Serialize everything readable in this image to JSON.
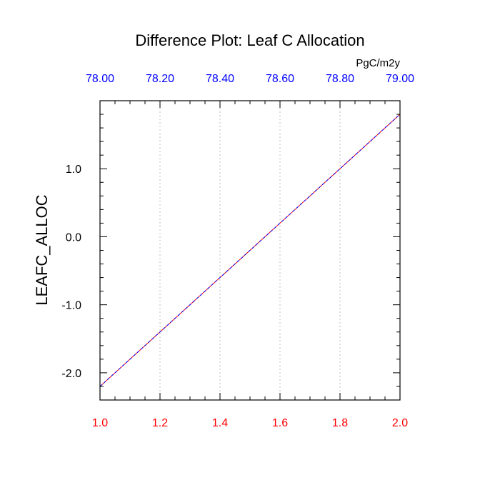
{
  "chart_data": {
    "type": "line",
    "title": "Difference Plot: Leaf C Allocation",
    "ylabel": "LEAFC_ALLOC",
    "units": "PgC/m2y",
    "xlim": [
      1.0,
      2.0
    ],
    "ylim": [
      -2.4,
      2.0
    ],
    "x_ticks": [
      "1.0",
      "1.2",
      "1.4",
      "1.6",
      "1.8",
      "2.0"
    ],
    "x_tick_color": "#ff0000",
    "top_axis": {
      "ticks": [
        "78.00",
        "78.20",
        "78.40",
        "78.60",
        "78.80",
        "79.00"
      ],
      "color": "#0000ff"
    },
    "y_ticks": [
      "-2.0",
      "-1.0",
      "0.0",
      "1.0"
    ],
    "grid": "vertical-dotted",
    "series": [
      {
        "x": [
          1.0,
          2.0
        ],
        "values": [
          -2.2,
          1.8
        ],
        "color": "#ff0000"
      },
      {
        "x": [
          1.0,
          2.0
        ],
        "values": [
          -2.2,
          1.8
        ],
        "color": "#0000ff"
      }
    ]
  }
}
